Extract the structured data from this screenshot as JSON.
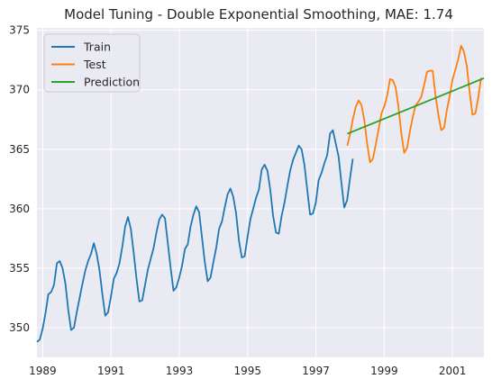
{
  "chart_data": {
    "type": "line",
    "title": "Model Tuning - Double Exponential Smoothing, MAE: 1.74",
    "xlabel": "",
    "ylabel": "",
    "xlim": [
      1988.83,
      2001.92
    ],
    "ylim": [
      347.5,
      375.2
    ],
    "x_ticks": [
      1989,
      1991,
      1993,
      1995,
      1997,
      1999,
      2001
    ],
    "y_ticks": [
      350,
      355,
      360,
      365,
      370,
      375
    ],
    "grid": true,
    "legend_position": "top-left",
    "background": "#eaeaf2",
    "series": [
      {
        "name": "Train",
        "color": "#1f77b4",
        "x_start": 1988.83,
        "x_step": 0.0833333,
        "values": [
          348.8,
          349.0,
          349.9,
          351.2,
          352.8,
          353.0,
          353.6,
          355.4,
          355.6,
          355.0,
          353.7,
          351.5,
          349.8,
          350.0,
          351.3,
          352.5,
          353.7,
          354.8,
          355.6,
          356.2,
          357.1,
          356.2,
          354.8,
          352.8,
          351.0,
          351.3,
          352.6,
          354.1,
          354.6,
          355.4,
          356.8,
          358.5,
          359.3,
          358.3,
          356.3,
          354.1,
          352.2,
          352.3,
          353.6,
          354.9,
          355.8,
          356.7,
          358.0,
          359.1,
          359.5,
          359.2,
          357.1,
          355.0,
          353.1,
          353.4,
          354.2,
          355.2,
          356.6,
          357.0,
          358.5,
          359.5,
          360.2,
          359.7,
          357.6,
          355.5,
          353.9,
          354.2,
          355.5,
          356.7,
          358.3,
          358.9,
          360.1,
          361.2,
          361.7,
          361.0,
          359.6,
          357.3,
          355.9,
          356.0,
          357.6,
          359.1,
          360.0,
          360.9,
          361.6,
          363.3,
          363.7,
          363.2,
          361.6,
          359.4,
          358.0,
          357.9,
          359.4,
          360.5,
          361.9,
          363.2,
          364.1,
          364.7,
          365.3,
          365.0,
          363.7,
          361.6,
          359.5,
          359.6,
          360.5,
          362.4,
          363.0,
          363.8,
          364.5,
          366.3,
          366.6,
          365.5,
          364.4,
          362.2,
          360.1,
          360.7,
          362.5,
          364.2
        ]
      },
      {
        "name": "Test",
        "color": "#ff7f0e",
        "x_start": 1997.92,
        "x_step": 0.0833333,
        "values": [
          365.3,
          366.3,
          367.6,
          368.6,
          369.1,
          368.7,
          367.4,
          365.4,
          363.9,
          364.2,
          365.4,
          366.7,
          368.0,
          368.6,
          369.5,
          370.9,
          370.8,
          370.2,
          368.5,
          366.3,
          364.7,
          365.1,
          366.5,
          367.7,
          368.7,
          369.0,
          369.4,
          370.4,
          371.5,
          371.6,
          371.6,
          369.5,
          367.9,
          366.6,
          366.8,
          368.3,
          369.5,
          370.9,
          371.7,
          372.6,
          373.7,
          373.2,
          372.0,
          369.8,
          367.9,
          368.0,
          369.3,
          371.0
        ]
      },
      {
        "name": "Prediction",
        "color": "#2ca02c",
        "x": [
          1997.92,
          2001.92
        ],
        "values": [
          366.3,
          370.97
        ]
      }
    ]
  }
}
